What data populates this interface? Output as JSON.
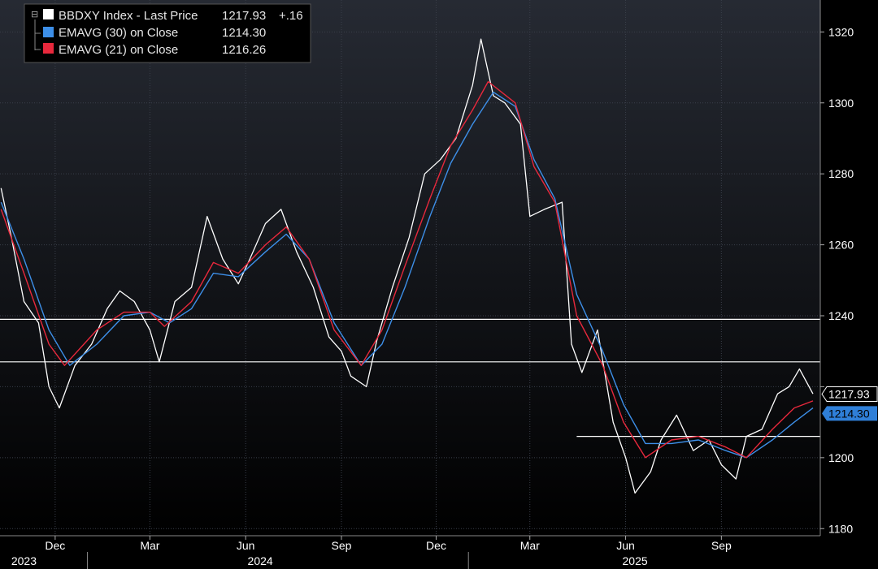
{
  "legend": {
    "items": [
      {
        "text": "BBDXY Index - Last Price",
        "value": "1217.93",
        "change": "+.16",
        "color": "#ffffff"
      },
      {
        "text": "EMAVG (30)  on Close",
        "value": "1214.30",
        "change": "",
        "color": "#3d8fe8"
      },
      {
        "text": "EMAVG (21)  on Close",
        "value": "1216.26",
        "change": "",
        "color": "#e8283c"
      }
    ]
  },
  "price_tags": {
    "last_price": "1217.93",
    "ema30": "1214.30"
  },
  "colors": {
    "background": "#000000",
    "price": "#ffffff",
    "ema30": "#3d8fe8",
    "ema21": "#e8283c",
    "grid": "#3a3f4a",
    "ema_tag_bg": "#2f7fd8"
  },
  "chart_data": {
    "type": "line",
    "title": "",
    "xlabel": "",
    "ylabel": "",
    "ylim": [
      1178,
      1329
    ],
    "yticks": [
      1180,
      1200,
      1220,
      1240,
      1260,
      1280,
      1300,
      1320
    ],
    "ytick_labels": [
      "1180",
      "1200",
      "",
      "1240",
      "1260",
      "1280",
      "1300",
      "1320"
    ],
    "x_axis": {
      "months": [
        {
          "label": "Dec",
          "date": "2023-12-01"
        },
        {
          "label": "Mar",
          "date": "2024-03-01"
        },
        {
          "label": "Jun",
          "date": "2024-06-01"
        },
        {
          "label": "Sep",
          "date": "2024-09-01"
        },
        {
          "label": "Dec",
          "date": "2024-12-01"
        },
        {
          "label": "Mar",
          "date": "2025-03-01"
        },
        {
          "label": "Jun",
          "date": "2025-06-01"
        },
        {
          "label": "Sep",
          "date": "2025-09-01"
        }
      ],
      "years": [
        {
          "label": "2023",
          "date": "2023-11-01"
        },
        {
          "label": "2024",
          "date": "2024-06-15"
        },
        {
          "label": "2025",
          "date": "2025-06-10"
        }
      ],
      "range": [
        "2023-10-09",
        "2025-12-05"
      ]
    },
    "horizontal_lines": [
      {
        "value": 1239,
        "from": "2023-10-09",
        "to": "2025-12-05"
      },
      {
        "value": 1227,
        "from": "2023-10-09",
        "to": "2025-12-05"
      },
      {
        "value": 1206,
        "from": "2025-04-15",
        "to": "2025-12-05"
      }
    ],
    "grid": true,
    "legend_position": "top-left",
    "series": [
      {
        "name": "BBDXY Index - Last Price",
        "color": "#ffffff",
        "points": [
          [
            "2023-10-10",
            1276
          ],
          [
            "2023-10-20",
            1262
          ],
          [
            "2023-11-01",
            1244
          ],
          [
            "2023-11-15",
            1238
          ],
          [
            "2023-11-25",
            1220
          ],
          [
            "2023-12-05",
            1214
          ],
          [
            "2023-12-20",
            1226
          ],
          [
            "2024-01-05",
            1232
          ],
          [
            "2024-01-20",
            1242
          ],
          [
            "2024-02-01",
            1247
          ],
          [
            "2024-02-15",
            1244
          ],
          [
            "2024-03-01",
            1236
          ],
          [
            "2024-03-10",
            1227
          ],
          [
            "2024-03-25",
            1244
          ],
          [
            "2024-04-10",
            1248
          ],
          [
            "2024-04-25",
            1268
          ],
          [
            "2024-05-10",
            1256
          ],
          [
            "2024-05-25",
            1249
          ],
          [
            "2024-06-05",
            1256
          ],
          [
            "2024-06-20",
            1266
          ],
          [
            "2024-07-05",
            1270
          ],
          [
            "2024-07-20",
            1258
          ],
          [
            "2024-08-05",
            1248
          ],
          [
            "2024-08-20",
            1234
          ],
          [
            "2024-09-01",
            1230
          ],
          [
            "2024-09-10",
            1223
          ],
          [
            "2024-09-25",
            1220
          ],
          [
            "2024-10-05",
            1233
          ],
          [
            "2024-10-20",
            1248
          ],
          [
            "2024-11-05",
            1262
          ],
          [
            "2024-11-20",
            1280
          ],
          [
            "2024-12-05",
            1284
          ],
          [
            "2024-12-20",
            1290
          ],
          [
            "2025-01-05",
            1305
          ],
          [
            "2025-01-13",
            1318
          ],
          [
            "2025-01-25",
            1302
          ],
          [
            "2025-02-05",
            1300
          ],
          [
            "2025-02-20",
            1294
          ],
          [
            "2025-03-01",
            1268
          ],
          [
            "2025-03-15",
            1270
          ],
          [
            "2025-04-01",
            1272
          ],
          [
            "2025-04-10",
            1232
          ],
          [
            "2025-04-20",
            1224
          ],
          [
            "2025-05-05",
            1236
          ],
          [
            "2025-05-20",
            1210
          ],
          [
            "2025-06-01",
            1200
          ],
          [
            "2025-06-10",
            1190
          ],
          [
            "2025-06-25",
            1196
          ],
          [
            "2025-07-05",
            1205
          ],
          [
            "2025-07-20",
            1212
          ],
          [
            "2025-08-05",
            1202
          ],
          [
            "2025-08-20",
            1205
          ],
          [
            "2025-09-01",
            1198
          ],
          [
            "2025-09-15",
            1194
          ],
          [
            "2025-09-25",
            1206
          ],
          [
            "2025-10-10",
            1208
          ],
          [
            "2025-10-25",
            1218
          ],
          [
            "2025-11-05",
            1220
          ],
          [
            "2025-11-15",
            1225
          ],
          [
            "2025-11-28",
            1218
          ]
        ]
      },
      {
        "name": "EMAVG (30) on Close",
        "color": "#3d8fe8",
        "points": [
          [
            "2023-10-10",
            1272
          ],
          [
            "2023-11-01",
            1256
          ],
          [
            "2023-11-25",
            1236
          ],
          [
            "2023-12-15",
            1226
          ],
          [
            "2024-01-10",
            1232
          ],
          [
            "2024-02-05",
            1240
          ],
          [
            "2024-03-01",
            1241
          ],
          [
            "2024-03-20",
            1238
          ],
          [
            "2024-04-10",
            1242
          ],
          [
            "2024-05-01",
            1252
          ],
          [
            "2024-05-25",
            1251
          ],
          [
            "2024-06-20",
            1258
          ],
          [
            "2024-07-10",
            1263
          ],
          [
            "2024-08-01",
            1256
          ],
          [
            "2024-08-25",
            1238
          ],
          [
            "2024-09-20",
            1226
          ],
          [
            "2024-10-10",
            1232
          ],
          [
            "2024-11-01",
            1248
          ],
          [
            "2024-11-25",
            1268
          ],
          [
            "2024-12-15",
            1283
          ],
          [
            "2025-01-05",
            1294
          ],
          [
            "2025-01-25",
            1303
          ],
          [
            "2025-02-15",
            1299
          ],
          [
            "2025-03-05",
            1284
          ],
          [
            "2025-03-25",
            1273
          ],
          [
            "2025-04-15",
            1246
          ],
          [
            "2025-05-10",
            1230
          ],
          [
            "2025-05-30",
            1215
          ],
          [
            "2025-06-20",
            1204
          ],
          [
            "2025-07-15",
            1204
          ],
          [
            "2025-08-10",
            1205
          ],
          [
            "2025-09-05",
            1202
          ],
          [
            "2025-09-25",
            1200
          ],
          [
            "2025-10-20",
            1205
          ],
          [
            "2025-11-10",
            1210
          ],
          [
            "2025-11-28",
            1214
          ]
        ]
      },
      {
        "name": "EMAVG (21) on Close",
        "color": "#e8283c",
        "points": [
          [
            "2023-10-10",
            1270
          ],
          [
            "2023-11-01",
            1252
          ],
          [
            "2023-11-25",
            1232
          ],
          [
            "2023-12-10",
            1226
          ],
          [
            "2024-01-10",
            1236
          ],
          [
            "2024-02-05",
            1241
          ],
          [
            "2024-03-01",
            1241
          ],
          [
            "2024-03-15",
            1237
          ],
          [
            "2024-04-10",
            1244
          ],
          [
            "2024-05-01",
            1255
          ],
          [
            "2024-05-25",
            1252
          ],
          [
            "2024-06-20",
            1260
          ],
          [
            "2024-07-10",
            1265
          ],
          [
            "2024-08-01",
            1256
          ],
          [
            "2024-08-25",
            1236
          ],
          [
            "2024-09-20",
            1226
          ],
          [
            "2024-10-10",
            1236
          ],
          [
            "2024-11-01",
            1254
          ],
          [
            "2024-11-25",
            1273
          ],
          [
            "2024-12-15",
            1288
          ],
          [
            "2025-01-05",
            1298
          ],
          [
            "2025-01-20",
            1306
          ],
          [
            "2025-02-15",
            1300
          ],
          [
            "2025-03-05",
            1282
          ],
          [
            "2025-03-25",
            1272
          ],
          [
            "2025-04-15",
            1240
          ],
          [
            "2025-05-10",
            1226
          ],
          [
            "2025-05-30",
            1210
          ],
          [
            "2025-06-20",
            1200
          ],
          [
            "2025-07-15",
            1205
          ],
          [
            "2025-08-10",
            1206
          ],
          [
            "2025-09-05",
            1203
          ],
          [
            "2025-09-25",
            1200
          ],
          [
            "2025-10-20",
            1208
          ],
          [
            "2025-11-10",
            1214
          ],
          [
            "2025-11-28",
            1216
          ]
        ]
      }
    ]
  }
}
